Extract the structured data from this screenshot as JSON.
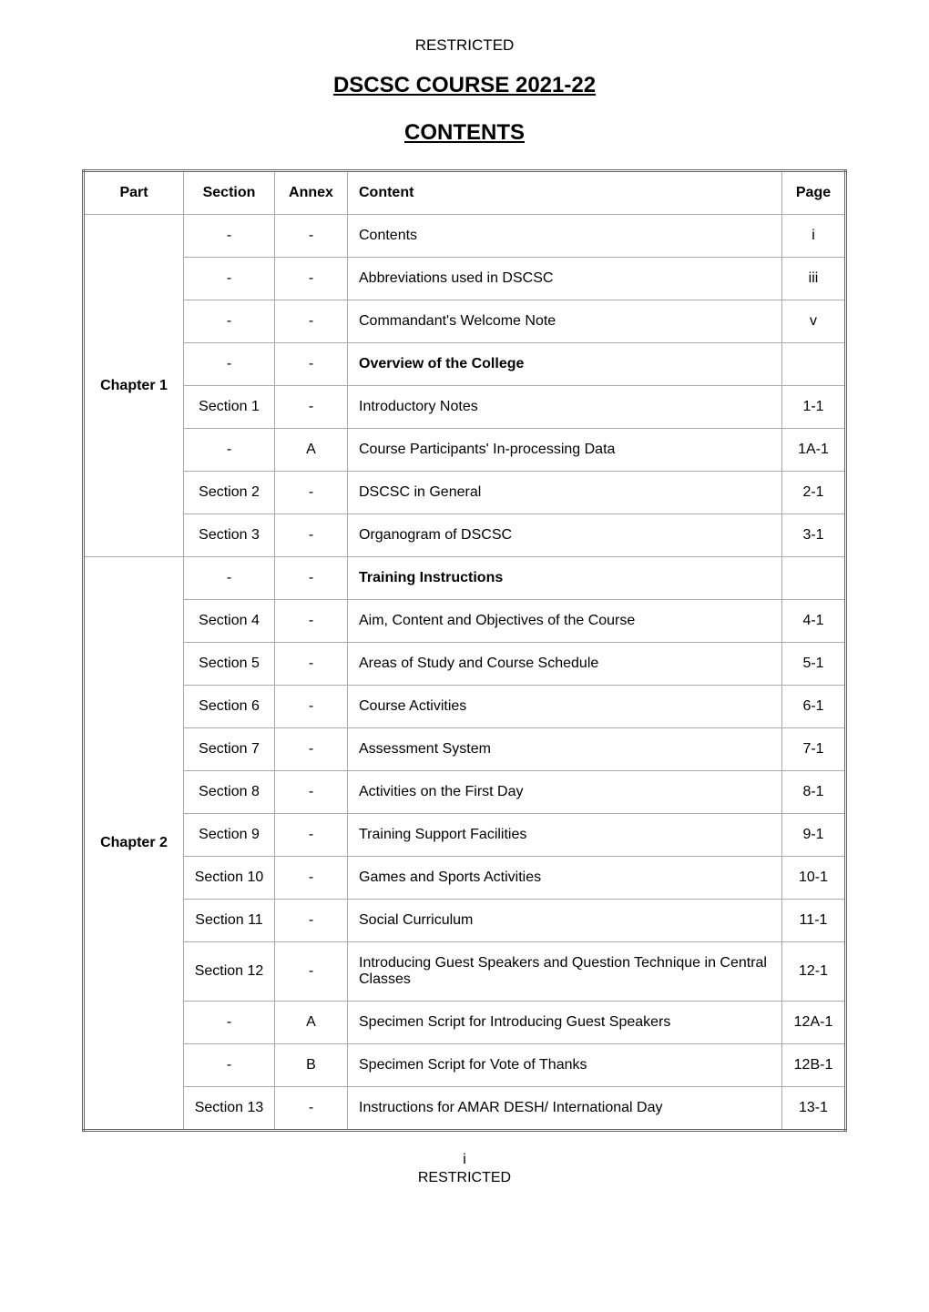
{
  "header": {
    "classification": "RESTRICTED"
  },
  "titles": {
    "main": "DSCSC COURSE 2021-22",
    "sub": "CONTENTS"
  },
  "table": {
    "columns": {
      "part": "Part",
      "section": "Section",
      "annex": "Annex",
      "content": "Content",
      "page": "Page"
    },
    "groups": [
      {
        "part": "Chapter 1",
        "rows": [
          {
            "section": "-",
            "annex": "-",
            "content": "Contents",
            "page": "i",
            "bold": false
          },
          {
            "section": "-",
            "annex": "-",
            "content": "Abbreviations used in DSCSC",
            "page": "iii",
            "bold": false
          },
          {
            "section": "-",
            "annex": "-",
            "content": "Commandant's Welcome Note",
            "page": "v",
            "bold": false
          },
          {
            "section": "-",
            "annex": "-",
            "content": "Overview of the College",
            "page": "",
            "bold": true
          },
          {
            "section": "Section 1",
            "annex": "-",
            "content": "Introductory Notes",
            "page": "1-1",
            "bold": false
          },
          {
            "section": "-",
            "annex": "A",
            "content": "Course Participants' In-processing Data",
            "page": "1A-1",
            "bold": false
          },
          {
            "section": "Section 2",
            "annex": "-",
            "content": "DSCSC in General",
            "page": "2-1",
            "bold": false
          },
          {
            "section": "Section 3",
            "annex": "-",
            "content": "Organogram of DSCSC",
            "page": "3-1",
            "bold": false
          }
        ]
      },
      {
        "part": "Chapter 2",
        "rows": [
          {
            "section": "-",
            "annex": "-",
            "content": "Training Instructions",
            "page": "",
            "bold": true
          },
          {
            "section": "Section 4",
            "annex": "-",
            "content": "Aim, Content and Objectives of the Course",
            "page": "4-1",
            "bold": false
          },
          {
            "section": "Section 5",
            "annex": "-",
            "content": "Areas of Study and Course Schedule",
            "page": "5-1",
            "bold": false
          },
          {
            "section": "Section 6",
            "annex": "-",
            "content": "Course Activities",
            "page": "6-1",
            "bold": false
          },
          {
            "section": "Section 7",
            "annex": "-",
            "content": "Assessment System",
            "page": "7-1",
            "bold": false
          },
          {
            "section": "Section 8",
            "annex": "-",
            "content": "Activities on the First Day",
            "page": "8-1",
            "bold": false
          },
          {
            "section": "Section 9",
            "annex": "-",
            "content": "Training Support Facilities",
            "page": "9-1",
            "bold": false
          },
          {
            "section": "Section 10",
            "annex": "-",
            "content": "Games and Sports Activities",
            "page": "10-1",
            "bold": false
          },
          {
            "section": "Section 11",
            "annex": "-",
            "content": "Social Curriculum",
            "page": "11-1",
            "bold": false
          },
          {
            "section": "Section 12",
            "annex": "-",
            "content": "Introducing Guest Speakers and Question Technique in Central Classes",
            "page": "12-1",
            "bold": false
          },
          {
            "section": "-",
            "annex": "A",
            "content": "Specimen Script for Introducing Guest Speakers",
            "page": "12A-1",
            "bold": false
          },
          {
            "section": "-",
            "annex": "B",
            "content": "Specimen Script for Vote of Thanks",
            "page": "12B-1",
            "bold": false
          },
          {
            "section": "Section 13",
            "annex": "-",
            "content": "Instructions for AMAR DESH/ International  Day",
            "page": "13-1",
            "bold": false
          }
        ]
      }
    ]
  },
  "footer": {
    "page_number": "i",
    "classification": "RESTRICTED"
  },
  "styling": {
    "body_bg": "#ffffff",
    "text_color": "#000000",
    "border_color": "#aaaaaa",
    "outer_border_color": "#666666",
    "font_family": "Arial",
    "title_fontsize": 24,
    "header_fontsize": 17,
    "cell_fontsize": 16,
    "col_widths": {
      "part": 110,
      "section": 100,
      "annex": 80,
      "page": 70
    }
  }
}
